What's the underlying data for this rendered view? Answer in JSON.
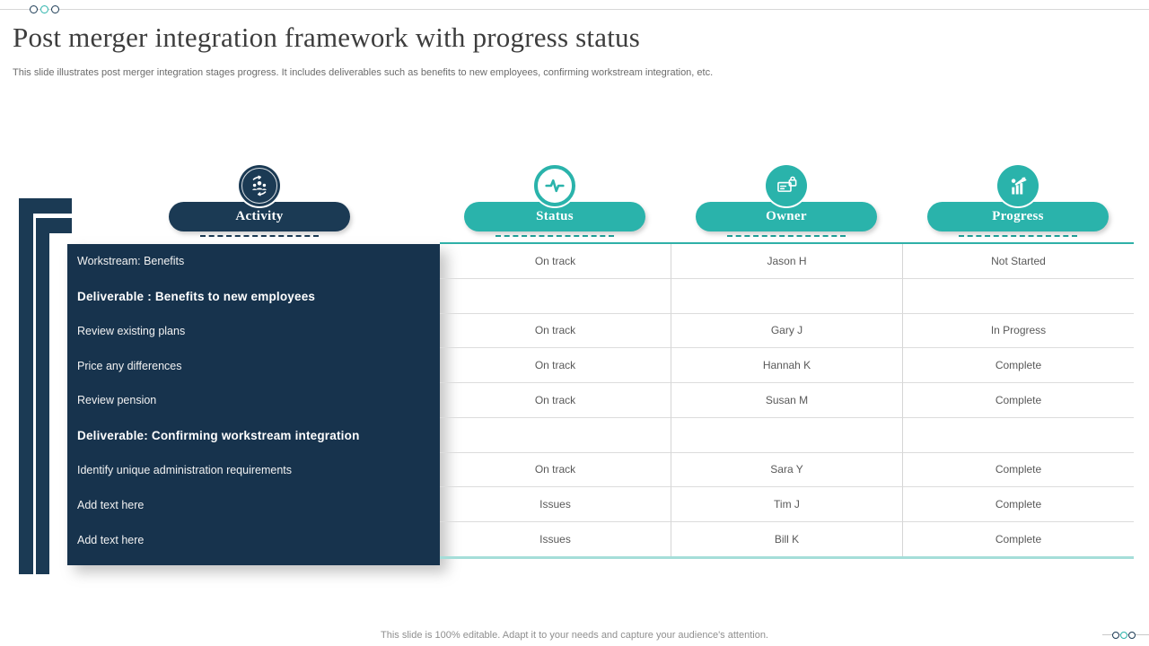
{
  "slide": {
    "title": "Post merger integration framework with progress status",
    "subtitle": "This slide illustrates post merger integration stages progress. It includes deliverables such as benefits to new employees, confirming workstream integration, etc.",
    "footer": "This slide is 100% editable. Adapt it to your needs and capture your audience's attention."
  },
  "colors": {
    "navy": "#1b3a54",
    "panel_navy": "#17334d",
    "teal": "#2ab3ab",
    "row_border": "#dcdcdc",
    "cell_text": "#595959",
    "accent_line_top": "#2fb0a8",
    "accent_line_bottom": "#a5ded9"
  },
  "table": {
    "columns": [
      {
        "label": "Activity",
        "icon": "team-icon",
        "style": "navy"
      },
      {
        "label": "Status",
        "icon": "pulse-icon",
        "style": "teal"
      },
      {
        "label": "Owner",
        "icon": "id-lock-icon",
        "style": "teal"
      },
      {
        "label": "Progress",
        "icon": "growth-chart-icon",
        "style": "teal"
      }
    ],
    "rows": [
      {
        "activity": "Workstream: Benefits",
        "status": "On track",
        "owner": "Jason H",
        "progress": "Not Started",
        "bold": false,
        "placeholder": false
      },
      {
        "activity": "Deliverable : Benefits to new employees",
        "status": "",
        "owner": "",
        "progress": "",
        "bold": true,
        "placeholder": false
      },
      {
        "activity": "Review existing plans",
        "status": "On track",
        "owner": "Gary J",
        "progress": "In Progress",
        "bold": false,
        "placeholder": false
      },
      {
        "activity": "Price any differences",
        "status": "On track",
        "owner": "Hannah K",
        "progress": "Complete",
        "bold": false,
        "placeholder": false
      },
      {
        "activity": "Review pension",
        "status": "On track",
        "owner": "Susan M",
        "progress": "Complete",
        "bold": false,
        "placeholder": false
      },
      {
        "activity": "Deliverable: Confirming workstream integration",
        "status": "",
        "owner": "",
        "progress": "",
        "bold": true,
        "placeholder": false
      },
      {
        "activity": "Identify unique administration requirements",
        "status": "On track",
        "owner": "Sara Y",
        "progress": "Complete",
        "bold": false,
        "placeholder": false
      },
      {
        "activity": "Add text here",
        "status": "Issues",
        "owner": "Tim J",
        "progress": "Complete",
        "bold": false,
        "placeholder": true
      },
      {
        "activity": "Add text here",
        "status": "Issues",
        "owner": "Bill K",
        "progress": "Complete",
        "bold": false,
        "placeholder": true
      }
    ]
  }
}
